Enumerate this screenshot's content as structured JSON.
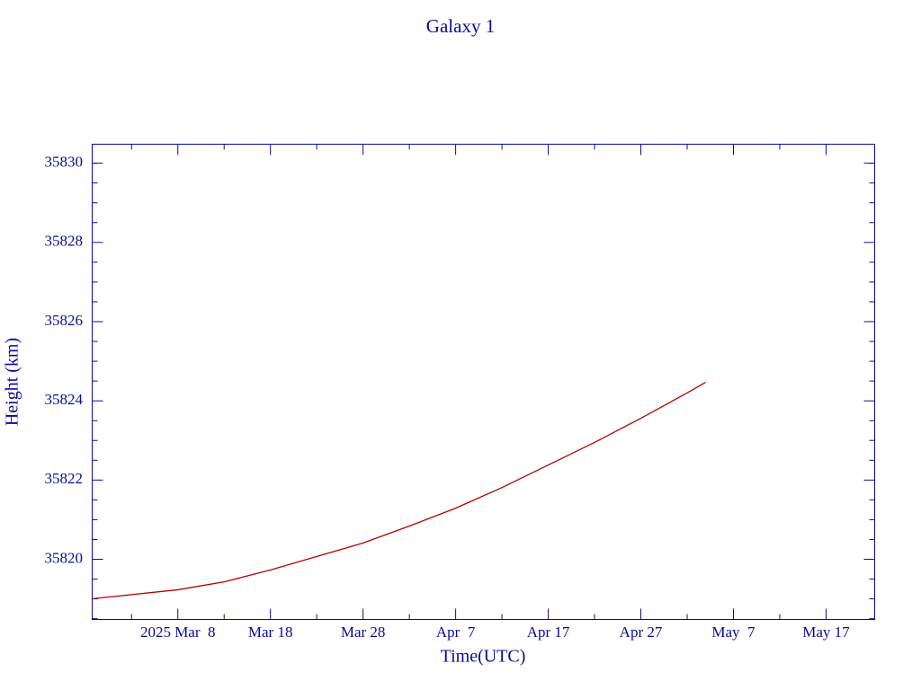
{
  "chart_data": {
    "type": "line",
    "title": "Galaxy 1",
    "x_label": "Time(UTC)",
    "y_label": "Height (km)",
    "x": [
      "2025-02-27",
      "2025-03-08",
      "2025-03-13",
      "2025-03-18",
      "2025-03-23",
      "2025-03-28",
      "2025-04-02",
      "2025-04-07",
      "2025-04-12",
      "2025-04-17",
      "2025-04-22",
      "2025-04-27",
      "2025-05-02",
      "2025-05-04"
    ],
    "series": [
      {
        "name": "Galaxy 1",
        "color": "#b40000",
        "values": [
          35819.01,
          35819.23,
          35819.43,
          35819.73,
          35820.07,
          35820.41,
          35820.84,
          35821.29,
          35821.81,
          35822.38,
          35822.95,
          35823.56,
          35824.2,
          35824.47
        ]
      }
    ],
    "xlim": [
      "2025-02-26T18:00Z",
      "2025-05-22T06:00Z"
    ],
    "xticks": [
      {
        "value": "2025-03-08",
        "label": "2025 Mar  8"
      },
      {
        "value": "2025-03-18",
        "label": "Mar 18"
      },
      {
        "value": "2025-03-28",
        "label": "Mar 28"
      },
      {
        "value": "2025-04-07",
        "label": "Apr  7"
      },
      {
        "value": "2025-04-17",
        "label": "Apr 17"
      },
      {
        "value": "2025-04-27",
        "label": "Apr 27"
      },
      {
        "value": "2025-05-07",
        "label": "May  7"
      },
      {
        "value": "2025-05-17",
        "label": "May 17"
      }
    ],
    "xminorticks": [
      "2025-03-03",
      "2025-03-13",
      "2025-03-23",
      "2025-04-02",
      "2025-04-12",
      "2025-04-22",
      "2025-05-02",
      "2025-05-12"
    ],
    "ylim": [
      35818.48,
      35830.48
    ],
    "yticks": [
      35820,
      35822,
      35824,
      35826,
      35828,
      35830
    ],
    "yminorticks": [
      35818.5,
      35819,
      35819.5,
      35820.5,
      35821,
      35821.5,
      35822.5,
      35823,
      35823.5,
      35824.5,
      35825,
      35825.5,
      35826.5,
      35827,
      35827.5,
      35828.5,
      35829,
      35829.5,
      35830
    ],
    "axis_color": "#0a0a96",
    "grid": false
  }
}
